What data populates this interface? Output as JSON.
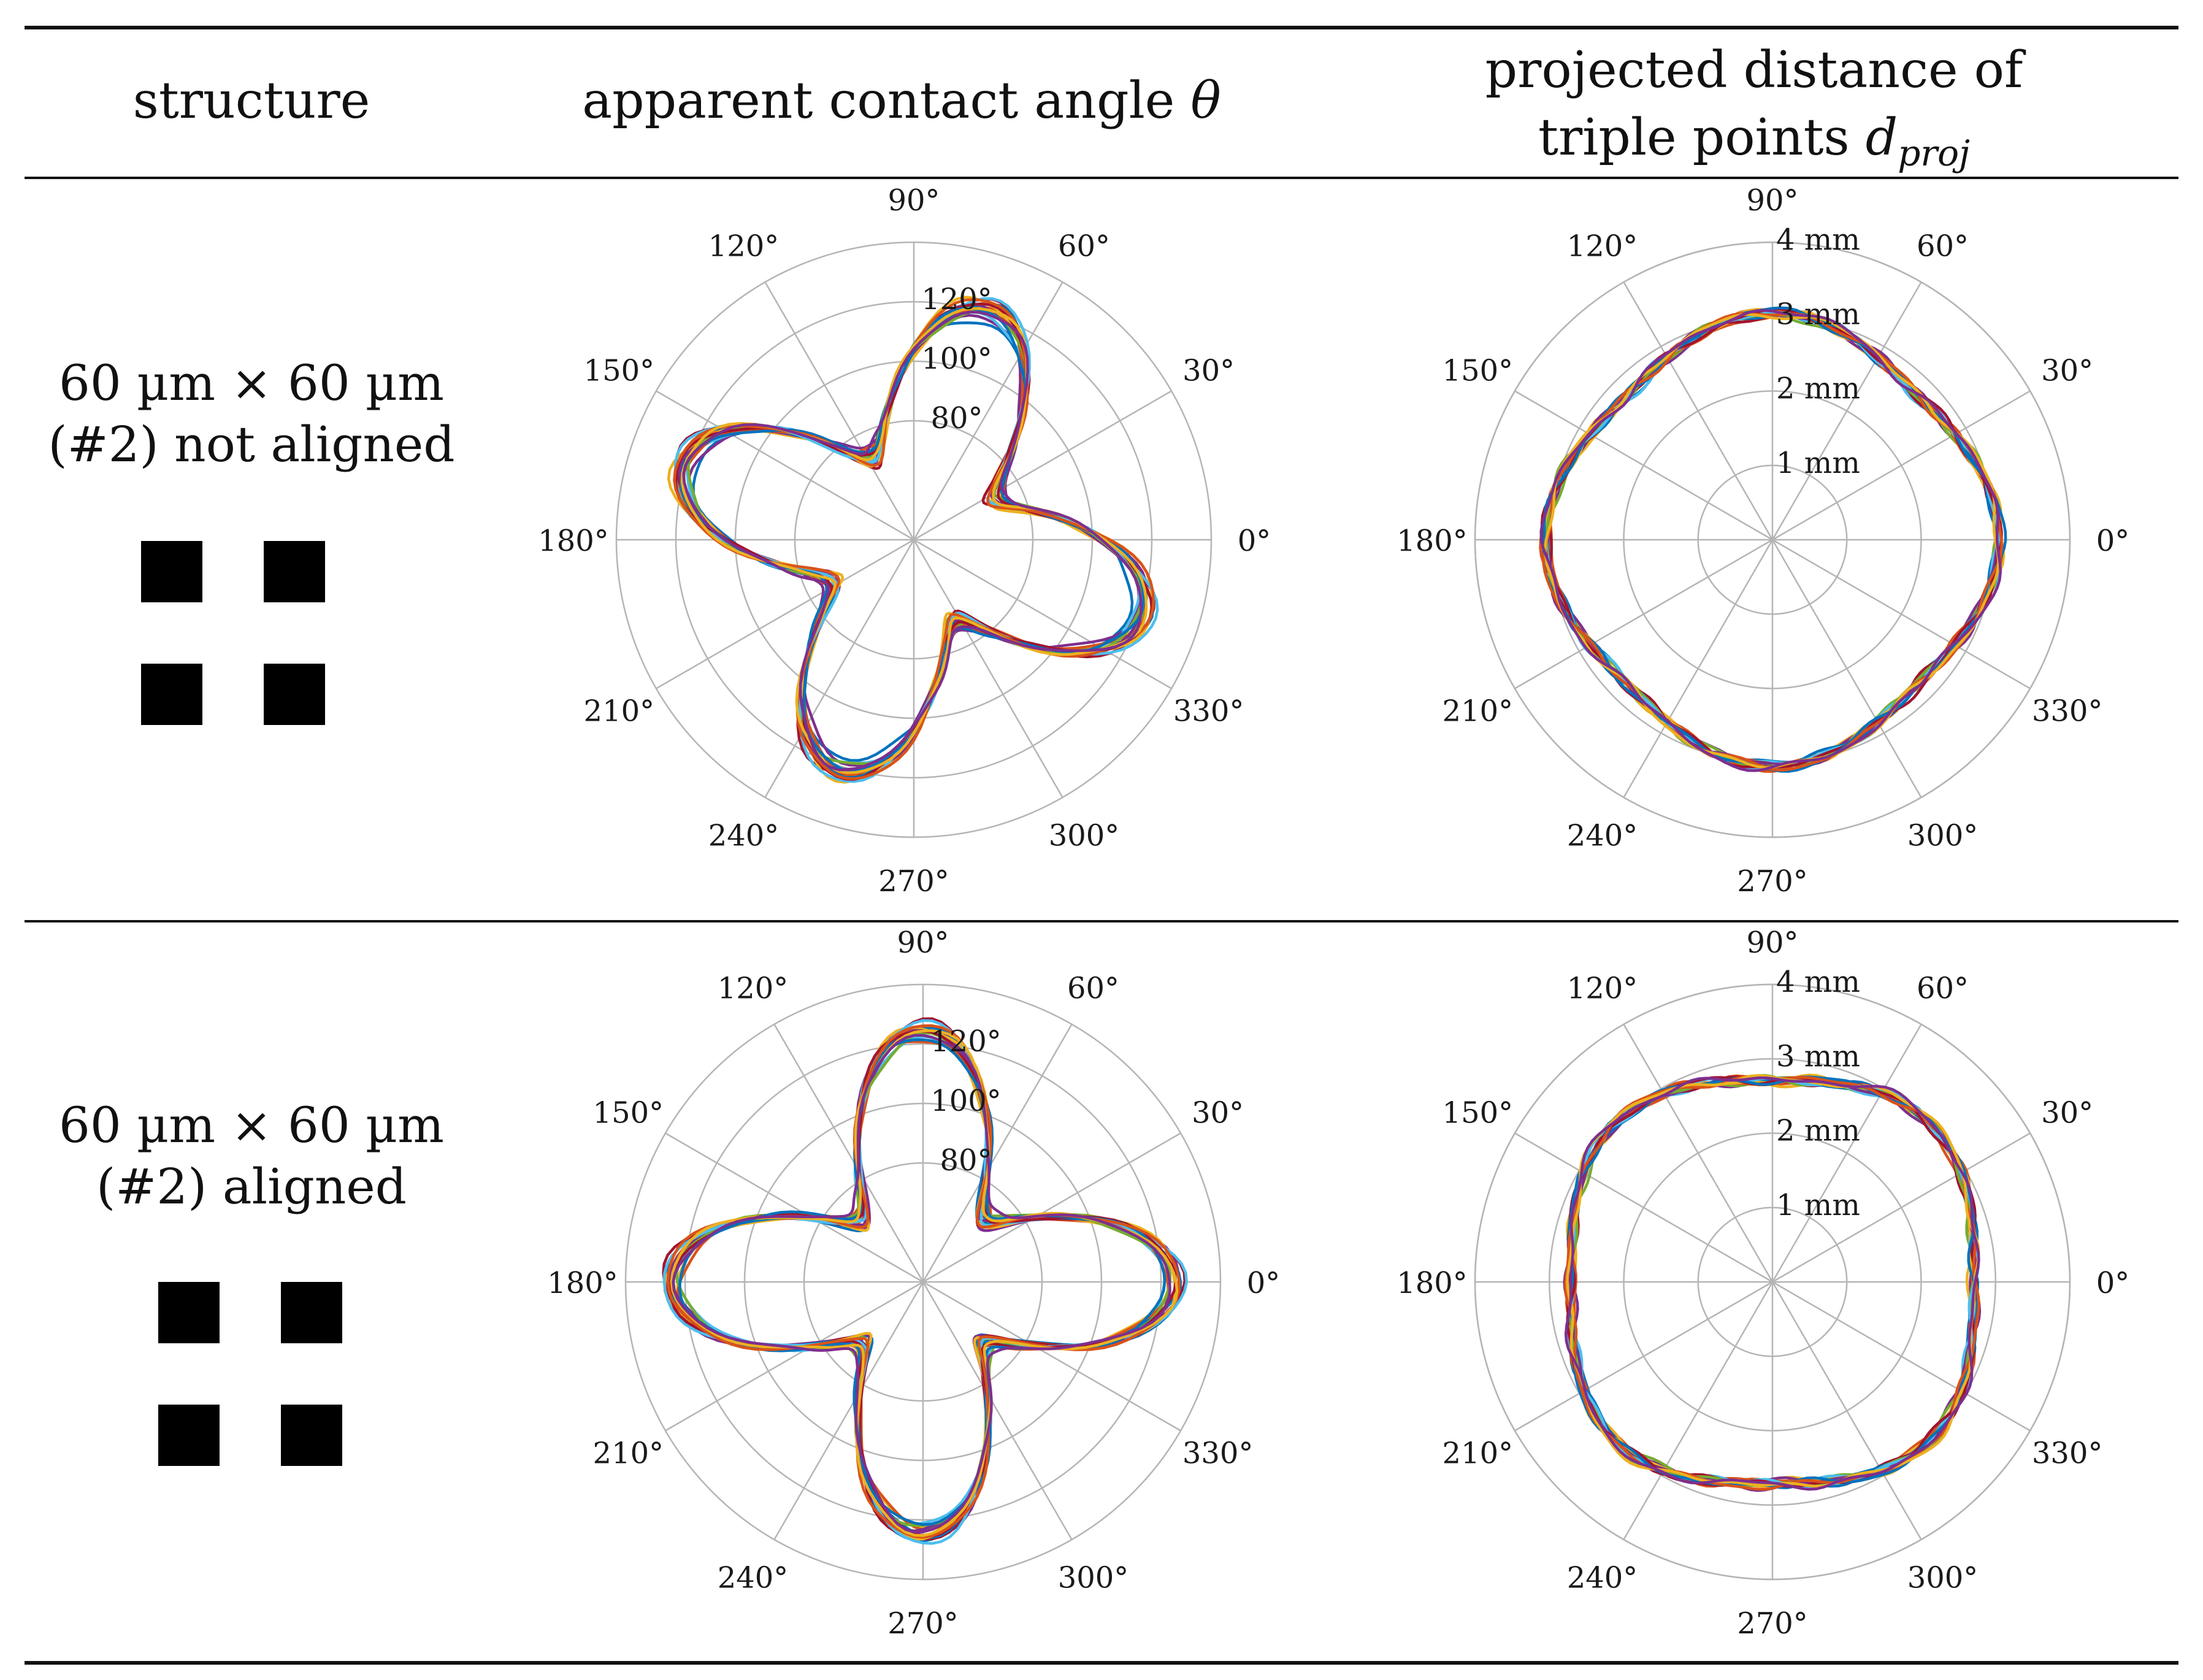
{
  "header": {
    "col1": "structure",
    "col2": "apparent contact angle",
    "col2_symbol": "θ",
    "col3_line1": "projected distance of",
    "col3_line2": "triple points",
    "col3_symbol": "d",
    "col3_subscript": "proj"
  },
  "rows": [
    {
      "label_line1": "60 µm × 60 µm",
      "label_line2": "(#2) not aligned"
    },
    {
      "label_line1": "60 µm × 60 µm",
      "label_line2": "(#2) aligned"
    }
  ],
  "colors": {
    "grid": "#b5b5b5",
    "rule": "#111111",
    "series": [
      "#0072BD",
      "#D95319",
      "#EDB120",
      "#7E2F8E",
      "#77AC30",
      "#4DBEEE",
      "#A2142F"
    ]
  },
  "chart_data": [
    {
      "id": "row1-angle",
      "type": "polar-line",
      "title": "apparent contact angle θ — 60 µm × 60 µm (#2) not aligned",
      "angular_ticks": [
        "0°",
        "30°",
        "60°",
        "90°",
        "120°",
        "150°",
        "180°",
        "210°",
        "240°",
        "270°",
        "300°",
        "330°"
      ],
      "rlim": [
        40,
        140
      ],
      "radial_ticks": [
        80,
        100,
        120
      ],
      "radial_tick_labels": [
        "80°",
        "100°",
        "120°"
      ],
      "series_model": {
        "count": 18,
        "base_deg": 97,
        "lobe_amplitude_deg": 25,
        "lobe_peak_angle_deg": 162,
        "lobe_count": 4,
        "spread_deg": 3
      }
    },
    {
      "id": "row1-distance",
      "type": "polar-line",
      "title": "projected distance of triple points d_proj — 60 µm × 60 µm (#2) not aligned",
      "angular_ticks": [
        "0°",
        "30°",
        "60°",
        "90°",
        "120°",
        "150°",
        "180°",
        "210°",
        "240°",
        "270°",
        "300°",
        "330°"
      ],
      "rlim": [
        0,
        4
      ],
      "radial_ticks": [
        1,
        2,
        3,
        4
      ],
      "radial_tick_labels": [
        "1 mm",
        "2 mm",
        "3 mm",
        "4 mm"
      ],
      "series_model": {
        "count": 18,
        "base_mm": 2.85,
        "lobe_amplitude_mm": 0.15,
        "lobe_peak_angle_deg": 180,
        "lobe_count": 4,
        "spread_mm": 0.1
      }
    },
    {
      "id": "row2-angle",
      "type": "polar-line",
      "title": "apparent contact angle θ — 60 µm × 60 µm (#2) aligned",
      "angular_ticks": [
        "0°",
        "30°",
        "60°",
        "90°",
        "120°",
        "150°",
        "180°",
        "210°",
        "240°",
        "270°",
        "300°",
        "330°"
      ],
      "rlim": [
        40,
        140
      ],
      "radial_ticks": [
        80,
        100,
        120
      ],
      "radial_tick_labels": [
        "80°",
        "100°",
        "120°"
      ],
      "series_model": {
        "count": 18,
        "base_deg": 99,
        "lobe_amplitude_deg": 27,
        "lobe_peak_angle_deg": 90,
        "lobe_count": 4,
        "spread_deg": 3
      }
    },
    {
      "id": "row2-distance",
      "type": "polar-line",
      "title": "projected distance of triple points d_proj — 60 µm × 60 µm (#2) aligned",
      "angular_ticks": [
        "0°",
        "30°",
        "60°",
        "90°",
        "120°",
        "150°",
        "180°",
        "210°",
        "240°",
        "270°",
        "300°",
        "330°"
      ],
      "rlim": [
        0,
        4
      ],
      "radial_ticks": [
        1,
        2,
        3,
        4
      ],
      "radial_tick_labels": [
        "1 mm",
        "2 mm",
        "3 mm",
        "4 mm"
      ],
      "series_model": {
        "count": 18,
        "base_mm": 2.85,
        "lobe_amplitude_mm": 0.15,
        "lobe_peak_angle_deg": 45,
        "lobe_count": 4,
        "spread_mm": 0.1
      }
    }
  ]
}
